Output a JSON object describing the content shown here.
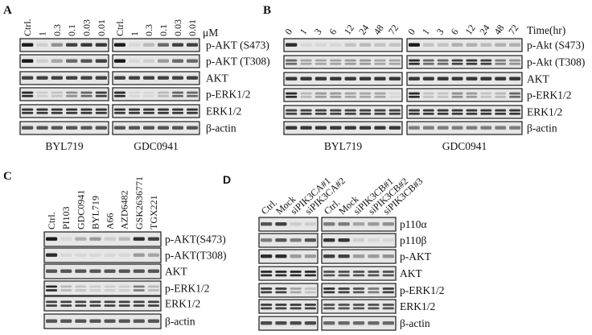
{
  "panels": [
    {
      "letter": "A",
      "unit": "μM",
      "rows": [
        "p-AKT (S473)",
        "p-AKT (T308)",
        "AKT",
        "p-ERK1/2",
        "ERK1/2",
        "β-actin"
      ],
      "double_band_rows": [
        3,
        4
      ],
      "groups": [
        {
          "name": "BYL719",
          "lanes": [
            "Ctrl.",
            "1",
            "0.3",
            "0.1",
            "0.03",
            "0.01"
          ],
          "band_intensity": [
            [
              1,
              0.1,
              0.4,
              0.8,
              0.85,
              0.85
            ],
            [
              1,
              0.1,
              0.3,
              0.6,
              0.7,
              0.8
            ],
            [
              0.8,
              0.8,
              0.8,
              0.8,
              0.8,
              0.8
            ],
            [
              0.9,
              0.1,
              0.15,
              0.4,
              0.6,
              0.8
            ],
            [
              0.85,
              0.85,
              0.85,
              0.85,
              0.85,
              0.85
            ],
            [
              0.7,
              0.7,
              0.7,
              0.7,
              0.7,
              0.7
            ]
          ]
        },
        {
          "name": "GDC0941",
          "lanes": [
            "Ctrl.",
            "1",
            "0.3",
            "0.1",
            "0.03",
            "0.01"
          ],
          "band_intensity": [
            [
              1,
              0.05,
              0.2,
              0.6,
              0.8,
              0.8
            ],
            [
              1,
              0.05,
              0.1,
              0.35,
              0.6,
              0.6
            ],
            [
              0.8,
              0.8,
              0.8,
              0.8,
              0.8,
              0.8
            ],
            [
              0.9,
              0.05,
              0.05,
              0.2,
              0.6,
              0.6
            ],
            [
              0.85,
              0.85,
              0.85,
              0.85,
              0.85,
              0.85
            ],
            [
              0.7,
              0.7,
              0.7,
              0.7,
              0.7,
              0.7
            ]
          ]
        }
      ]
    },
    {
      "letter": "B",
      "unit": "Time(hr)",
      "rows": [
        "p-Akt (S473)",
        "p-Akt (T308)",
        "AKT",
        "p-ERK1/2",
        "ERK1/2",
        "β-actin"
      ],
      "double_band_rows": [
        1,
        3,
        4
      ],
      "groups": [
        {
          "name": "BYL719",
          "lanes": [
            "0",
            "1",
            "3",
            "6",
            "12",
            "24",
            "48",
            "72"
          ],
          "band_intensity": [
            [
              0.9,
              0.05,
              0.05,
              0.05,
              0.15,
              0.2,
              0.15,
              0.15
            ],
            [
              0.6,
              0.3,
              0.3,
              0.3,
              0.35,
              0.35,
              0.3,
              0.3
            ],
            [
              0.85,
              0.85,
              0.85,
              0.85,
              0.85,
              0.85,
              0.85,
              0.85
            ],
            [
              0.9,
              0.2,
              0.35,
              0.35,
              0.3,
              0.3,
              0.3,
              0.05
            ],
            [
              0.8,
              0.8,
              0.8,
              0.8,
              0.8,
              0.8,
              0.8,
              0.8
            ],
            [
              0.85,
              0.85,
              0.85,
              0.85,
              0.85,
              0.85,
              0.85,
              0.85
            ]
          ]
        },
        {
          "name": "GDC0941",
          "lanes": [
            "0",
            "1",
            "3",
            "6",
            "12",
            "24",
            "48",
            "72"
          ],
          "band_intensity": [
            [
              1,
              0.15,
              0.15,
              0.25,
              0.25,
              0.2,
              0.25,
              0.25
            ],
            [
              0.9,
              0.6,
              0.6,
              0.8,
              0.85,
              0.8,
              0.5,
              0.4
            ],
            [
              0.85,
              0.85,
              0.85,
              0.85,
              0.85,
              0.85,
              0.85,
              0.85
            ],
            [
              0.9,
              0.15,
              0.15,
              0.4,
              0.35,
              0.15,
              0.2,
              0.6
            ],
            [
              0.85,
              0.85,
              0.85,
              0.85,
              0.85,
              0.85,
              0.85,
              0.85
            ],
            [
              0.5,
              0.5,
              0.5,
              0.5,
              0.5,
              0.5,
              0.5,
              0.5
            ]
          ]
        }
      ]
    },
    {
      "letter": "C",
      "rows": [
        "p-AKT(S473)",
        "p-AKT(T308)",
        "AKT",
        "p-ERK1/2",
        "ERK1/2",
        "β-actin"
      ],
      "double_band_rows": [
        3,
        4
      ],
      "groups": [
        {
          "name": "",
          "lanes": [
            "Ctrl.",
            "PI103",
            "GDC0941",
            "BYL719",
            "A66",
            "AZD6482",
            "GSK2636771",
            "TGX221"
          ],
          "band_intensity": [
            [
              1,
              0.05,
              0.25,
              0.35,
              0.1,
              0.2,
              0.9,
              0.8
            ],
            [
              0.9,
              0.05,
              0.05,
              0.05,
              0.05,
              0.05,
              0.35,
              0.3
            ],
            [
              0.7,
              0.7,
              0.7,
              0.7,
              0.7,
              0.7,
              0.7,
              0.7
            ],
            [
              0.9,
              0.2,
              0.15,
              0.1,
              0.1,
              0.1,
              0.5,
              0.2
            ],
            [
              0.8,
              0.8,
              0.8,
              0.8,
              0.8,
              0.8,
              0.8,
              0.8
            ],
            [
              0.7,
              0.7,
              0.7,
              0.7,
              0.7,
              0.7,
              0.7,
              0.7
            ]
          ]
        }
      ]
    },
    {
      "letter": "D",
      "rows": [
        "p110α",
        "p110β",
        "p-AKT",
        "AKT",
        "p-ERK1/2",
        "ERK1/2",
        "β-actin"
      ],
      "double_band_rows": [
        3,
        4,
        5
      ],
      "groups": [
        {
          "name": "",
          "lanes": [
            "Ctrl.",
            "Mock",
            "siPIK3CA#1",
            "siPIK3CA#2"
          ],
          "band_intensity": [
            [
              0.7,
              0.8,
              0.1,
              0.1
            ],
            [
              0.5,
              0.7,
              0.5,
              0.7
            ],
            [
              0.9,
              0.9,
              0.35,
              0.35
            ],
            [
              0.9,
              0.9,
              0.9,
              0.9
            ],
            [
              0.8,
              0.8,
              0.3,
              0.15
            ],
            [
              0.8,
              0.8,
              0.8,
              0.8
            ],
            [
              0.75,
              0.75,
              0.75,
              0.75
            ]
          ]
        },
        {
          "name": "",
          "lanes": [
            "Ctrl.",
            "Mock",
            "siPIK3CB#1",
            "siPIK3CB#2",
            "siPIK3CB#3"
          ],
          "band_intensity": [
            [
              0.5,
              0.5,
              0.3,
              0.35,
              0.4
            ],
            [
              0.85,
              0.85,
              0.1,
              0.05,
              0.05
            ],
            [
              0.8,
              0.8,
              0.35,
              0.35,
              0.4
            ],
            [
              0.7,
              0.7,
              0.7,
              0.7,
              0.7
            ],
            [
              0.85,
              0.8,
              0.7,
              0.5,
              0.8
            ],
            [
              0.7,
              0.7,
              0.7,
              0.7,
              0.7
            ],
            [
              0.6,
              0.6,
              0.6,
              0.6,
              0.6
            ]
          ]
        }
      ]
    }
  ]
}
